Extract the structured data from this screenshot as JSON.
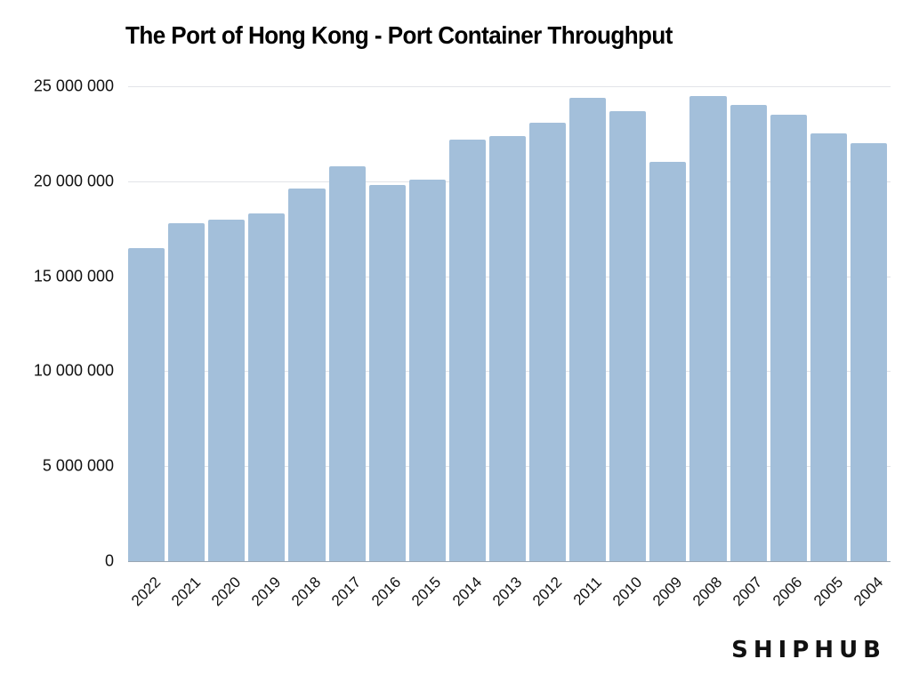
{
  "title": "The Port of Hong Kong - Port Container Throughput",
  "brand": "SHIPHUB",
  "colors": {
    "bar": "#a3bfda",
    "grid": "#e2e4e8",
    "text": "#111111"
  },
  "y_ticks": [
    {
      "value": 25000000,
      "label": "25 000 000"
    },
    {
      "value": 20000000,
      "label": "20 000 000"
    },
    {
      "value": 15000000,
      "label": "15 000 000"
    },
    {
      "value": 10000000,
      "label": "10 000 000"
    },
    {
      "value": 5000000,
      "label": "5 000 000"
    },
    {
      "value": 0,
      "label": "0"
    }
  ],
  "chart_data": {
    "type": "bar",
    "title": "The Port of Hong Kong - Port Container Throughput",
    "xlabel": "",
    "ylabel": "",
    "ylim": [
      0,
      25000000
    ],
    "grid": true,
    "legend": "none",
    "categories": [
      "2022",
      "2021",
      "2020",
      "2019",
      "2018",
      "2017",
      "2016",
      "2015",
      "2014",
      "2013",
      "2012",
      "2011",
      "2010",
      "2009",
      "2008",
      "2007",
      "2006",
      "2005",
      "2004"
    ],
    "values": [
      16500000,
      17800000,
      18000000,
      18300000,
      19600000,
      20800000,
      19800000,
      20100000,
      22200000,
      22400000,
      23100000,
      24400000,
      23700000,
      21000000,
      24500000,
      24000000,
      23500000,
      22500000,
      22000000
    ],
    "y_tick_labels": [
      "0",
      "5 000 000",
      "10 000 000",
      "15 000 000",
      "20 000 000",
      "25 000 000"
    ],
    "annotations": [
      "SHIPHUB"
    ]
  }
}
